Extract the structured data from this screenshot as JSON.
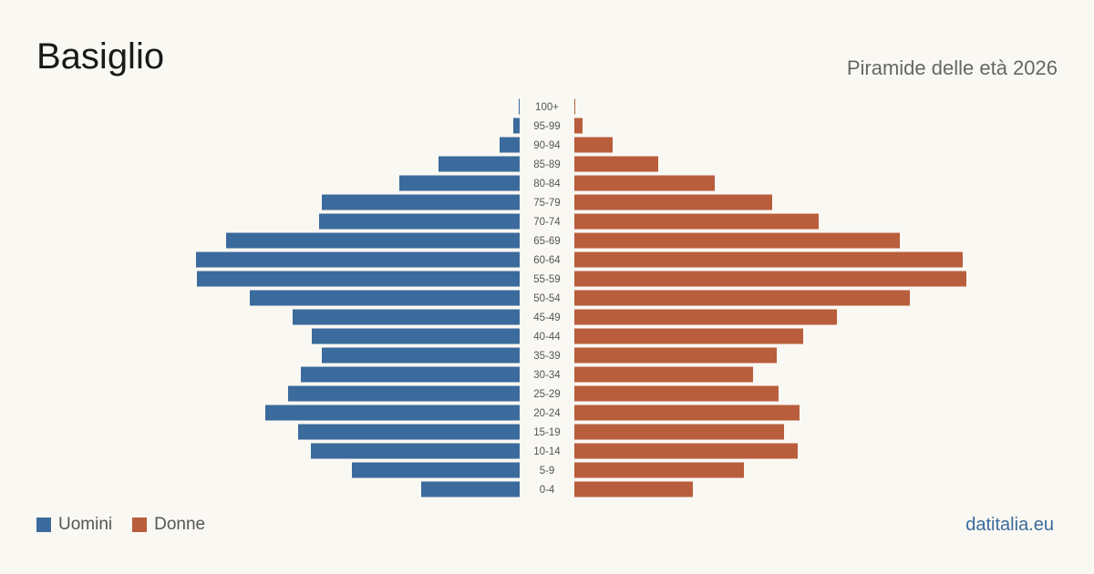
{
  "title": "Basiglio",
  "subtitle": "Piramide delle età 2026",
  "source": "datitalia.eu",
  "legend": {
    "men_label": "Uomini",
    "women_label": "Donne"
  },
  "colors": {
    "men": "#3b6a9c",
    "women": "#b95e3c",
    "background": "#faf8f3"
  },
  "chart_data": {
    "type": "bar",
    "orientation": "horizontal-pyramid",
    "categories": [
      "0-4",
      "5-9",
      "10-14",
      "15-19",
      "20-24",
      "25-29",
      "30-34",
      "35-39",
      "40-44",
      "45-49",
      "50-54",
      "55-59",
      "60-64",
      "65-69",
      "70-74",
      "75-79",
      "80-84",
      "85-89",
      "90-94",
      "95-99",
      "100+"
    ],
    "series": [
      {
        "name": "Uomini",
        "values": [
          108,
          184,
          229,
          243,
          279,
          254,
          240,
          217,
          228,
          249,
          296,
          354,
          355,
          322,
          220,
          217,
          132,
          89,
          22,
          7,
          1
        ]
      },
      {
        "name": "Donne",
        "values": [
          130,
          186,
          245,
          230,
          247,
          224,
          196,
          222,
          251,
          288,
          368,
          430,
          426,
          357,
          268,
          217,
          154,
          92,
          42,
          9,
          1
        ]
      }
    ],
    "grid": false,
    "legend_position": "bottom-left"
  }
}
